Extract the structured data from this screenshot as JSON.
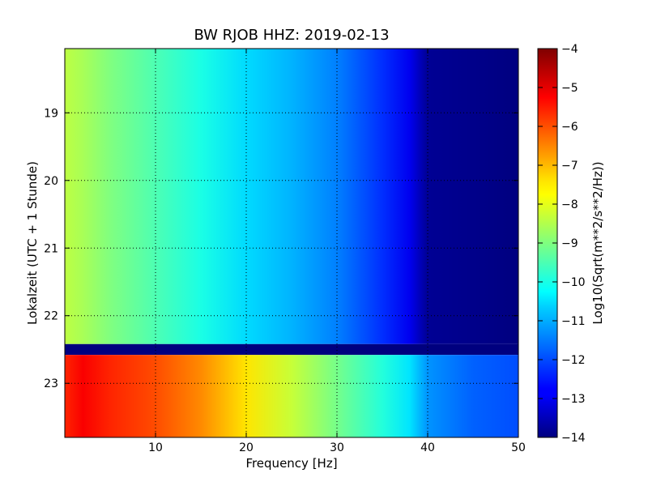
{
  "chart_data": {
    "type": "heatmap",
    "title": "BW RJOB HHZ: 2019-02-13",
    "xlabel": "Frequency [Hz]",
    "ylabel": "Lokalzeit (UTC + 1 Stunde)",
    "colorbar_label": "Log10(Sqrt(m**2/s**2/Hz))",
    "xlim": [
      0,
      50
    ],
    "ylim": [
      18.05,
      23.8
    ],
    "y_inverted": true,
    "x_ticks": [
      10,
      20,
      30,
      40,
      50
    ],
    "y_ticks": [
      19,
      20,
      21,
      22,
      23
    ],
    "colorbar_range": [
      -14,
      -4
    ],
    "colorbar_ticks": [
      -4,
      -5,
      -6,
      -7,
      -8,
      -9,
      -10,
      -11,
      -12,
      -13,
      -14
    ],
    "colormap": "jet",
    "grid": true,
    "gap_band": [
      22.42,
      22.58
    ],
    "upper_block_profile": {
      "frequency": [
        0,
        2,
        5,
        10,
        15,
        20,
        25,
        30,
        35,
        38,
        40,
        50
      ],
      "value": [
        -8.4,
        -8.6,
        -9.0,
        -9.5,
        -10.0,
        -10.6,
        -11.0,
        -11.5,
        -12.3,
        -12.9,
        -13.8,
        -14.0
      ]
    },
    "lower_block_profile": {
      "frequency": [
        0,
        2,
        5,
        10,
        15,
        20,
        25,
        30,
        35,
        38,
        40,
        45,
        50
      ],
      "value": [
        -5.6,
        -5.2,
        -5.6,
        -6.0,
        -6.6,
        -7.5,
        -8.3,
        -9.1,
        -9.9,
        -10.5,
        -11.3,
        -11.8,
        -12.0
      ]
    }
  }
}
